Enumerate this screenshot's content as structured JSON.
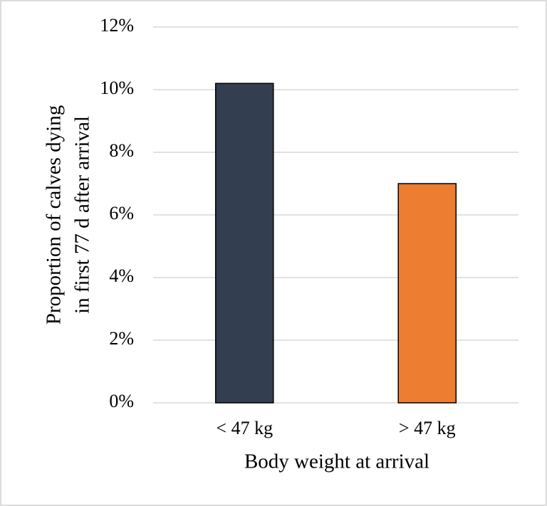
{
  "chart_data": {
    "type": "bar",
    "categories": [
      "< 47 kg",
      "> 47 kg"
    ],
    "values": [
      10.2,
      7.0
    ],
    "colors": [
      "#333f50",
      "#ed7d31"
    ],
    "xlabel": "Body weight at arrival",
    "ylabel": [
      "Proportion of calves dying",
      "in first 77 d after arrival"
    ],
    "ylim": [
      0,
      12
    ],
    "yticks": [
      {
        "value": 0,
        "label": "0%"
      },
      {
        "value": 2,
        "label": "2%"
      },
      {
        "value": 4,
        "label": "4%"
      },
      {
        "value": 6,
        "label": "6%"
      },
      {
        "value": 8,
        "label": "8%"
      },
      {
        "value": 10,
        "label": "10%"
      },
      {
        "value": 12,
        "label": "12%"
      }
    ],
    "grid": true
  }
}
